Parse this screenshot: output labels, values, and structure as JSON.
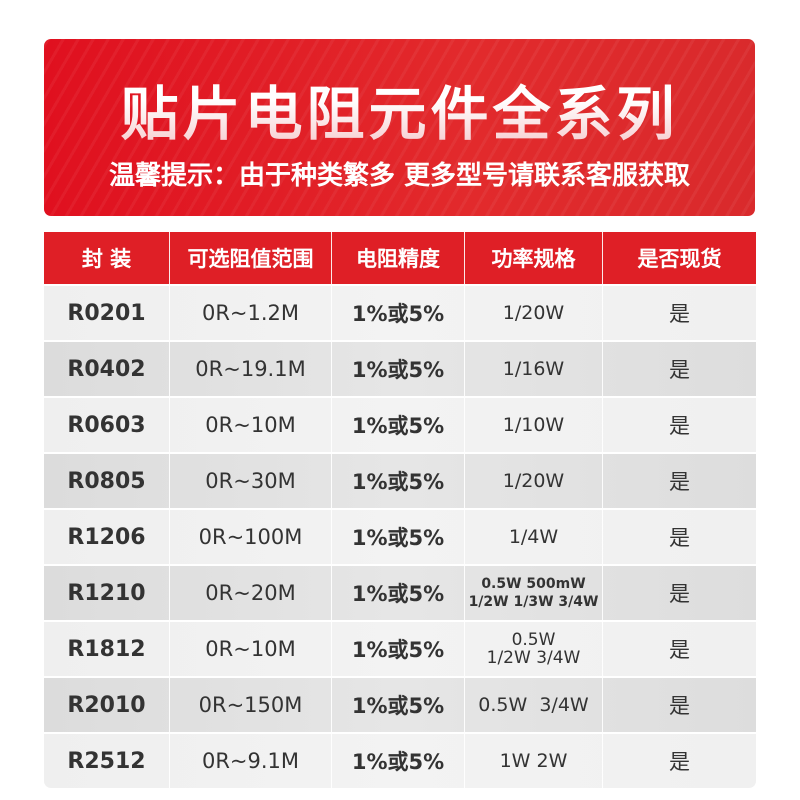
{
  "banner": {
    "title": "贴片电阻元件全系列",
    "subtitle": "温馨提示：由于种类繁多 更多型号请联系客服获取",
    "color": "#e0121f"
  },
  "table": {
    "header_color": "#df1f26",
    "columns": [
      "封 装",
      "可选阻值范围",
      "电阻精度",
      "功率规格",
      "是否现货"
    ],
    "rows": [
      {
        "package": "R0201",
        "range": "0R~1.2M",
        "tolerance": "1%或5%",
        "power": [
          "1/20W"
        ],
        "in_stock": "是"
      },
      {
        "package": "R0402",
        "range": "0R~19.1M",
        "tolerance": "1%或5%",
        "power": [
          "1/16W"
        ],
        "in_stock": "是"
      },
      {
        "package": "R0603",
        "range": "0R~10M",
        "tolerance": "1%或5%",
        "power": [
          "1/10W"
        ],
        "in_stock": "是"
      },
      {
        "package": "R0805",
        "range": "0R~30M",
        "tolerance": "1%或5%",
        "power": [
          "1/20W"
        ],
        "in_stock": "是"
      },
      {
        "package": "R1206",
        "range": "0R~100M",
        "tolerance": "1%或5%",
        "power": [
          "1/4W"
        ],
        "in_stock": "是"
      },
      {
        "package": "R1210",
        "range": "0R~20M",
        "tolerance": "1%或5%",
        "power": [
          "0.5W 500mW",
          "1/2W 1/3W 3/4W"
        ],
        "in_stock": "是"
      },
      {
        "package": "R1812",
        "range": "0R~10M",
        "tolerance": "1%或5%",
        "power": [
          "0.5W",
          "1/2W 3/4W"
        ],
        "in_stock": "是"
      },
      {
        "package": "R2010",
        "range": "0R~150M",
        "tolerance": "1%或5%",
        "power": [
          "0.5W  3/4W"
        ],
        "in_stock": "是"
      },
      {
        "package": "R2512",
        "range": "0R~9.1M",
        "tolerance": "1%或5%",
        "power": [
          "1W 2W"
        ],
        "in_stock": "是"
      }
    ]
  }
}
